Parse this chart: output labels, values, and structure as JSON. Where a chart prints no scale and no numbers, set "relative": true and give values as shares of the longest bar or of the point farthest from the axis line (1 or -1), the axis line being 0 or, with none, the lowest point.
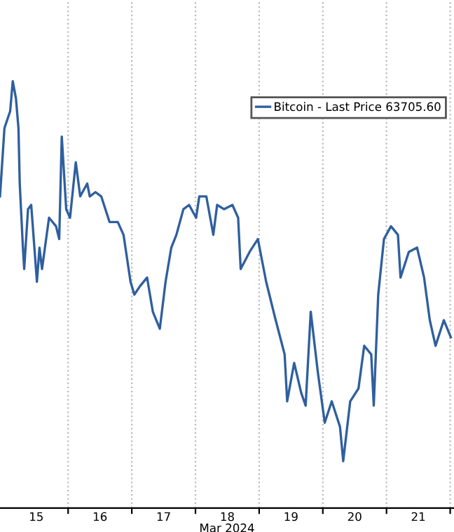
{
  "chart_data": {
    "type": "line",
    "relative": true,
    "xlabel": "Mar 2024",
    "xlim": [
      14.93,
      22.06
    ],
    "xticks": [
      {
        "value": 15.5,
        "label": "15"
      },
      {
        "value": 16,
        "label": null
      },
      {
        "value": 16.5,
        "label": "16"
      },
      {
        "value": 17,
        "label": null
      },
      {
        "value": 17.5,
        "label": "17"
      },
      {
        "value": 18,
        "label": null
      },
      {
        "value": 18.5,
        "label": "18"
      },
      {
        "value": 19,
        "label": null
      },
      {
        "value": 19.5,
        "label": "19"
      },
      {
        "value": 20,
        "label": null
      },
      {
        "value": 20.5,
        "label": "20"
      },
      {
        "value": 21,
        "label": null
      },
      {
        "value": 21.5,
        "label": "21"
      },
      {
        "value": 22,
        "label": null
      }
    ],
    "grid": "x",
    "legend": "top right",
    "marker": "none",
    "line_style": "solid",
    "series": [
      {
        "name": "Bitcoin - Last Price 63705.60",
        "color": "#2f5f9e",
        "x": [
          14.93,
          15.0,
          15.09,
          15.13,
          15.18,
          15.22,
          15.24,
          15.29,
          15.31,
          15.37,
          15.42,
          15.51,
          15.55,
          15.59,
          15.7,
          15.81,
          15.86,
          15.9,
          15.97,
          16.03,
          16.12,
          16.19,
          16.3,
          16.34,
          16.43,
          16.52,
          16.65,
          16.78,
          16.87,
          16.98,
          17.04,
          17.13,
          17.24,
          17.33,
          17.44,
          17.53,
          17.62,
          17.7,
          17.81,
          17.9,
          18.01,
          18.06,
          18.17,
          18.28,
          18.34,
          18.45,
          18.58,
          18.67,
          18.71,
          18.85,
          18.98,
          19.11,
          19.26,
          19.4,
          19.44,
          19.55,
          19.66,
          19.73,
          19.81,
          19.92,
          20.03,
          20.14,
          20.27,
          20.32,
          20.43,
          20.56,
          20.65,
          20.76,
          20.8,
          20.87,
          20.96,
          21.07,
          21.18,
          21.22,
          21.35,
          21.48,
          21.59,
          21.68,
          21.77,
          21.9,
          22.01
        ],
        "values": [
          0.73,
          0.89,
          0.93,
          1.0,
          0.96,
          0.89,
          0.76,
          0.61,
          0.56,
          0.7,
          0.71,
          0.53,
          0.61,
          0.56,
          0.68,
          0.66,
          0.63,
          0.87,
          0.7,
          0.68,
          0.81,
          0.73,
          0.76,
          0.73,
          0.74,
          0.73,
          0.67,
          0.67,
          0.64,
          0.53,
          0.5,
          0.52,
          0.54,
          0.46,
          0.42,
          0.53,
          0.61,
          0.64,
          0.7,
          0.71,
          0.68,
          0.73,
          0.73,
          0.64,
          0.71,
          0.7,
          0.71,
          0.68,
          0.56,
          0.6,
          0.63,
          0.53,
          0.44,
          0.36,
          0.25,
          0.34,
          0.27,
          0.24,
          0.46,
          0.32,
          0.2,
          0.25,
          0.19,
          0.11,
          0.25,
          0.28,
          0.38,
          0.36,
          0.24,
          0.5,
          0.63,
          0.66,
          0.64,
          0.54,
          0.6,
          0.61,
          0.54,
          0.44,
          0.38,
          0.44,
          0.4
        ]
      }
    ]
  }
}
